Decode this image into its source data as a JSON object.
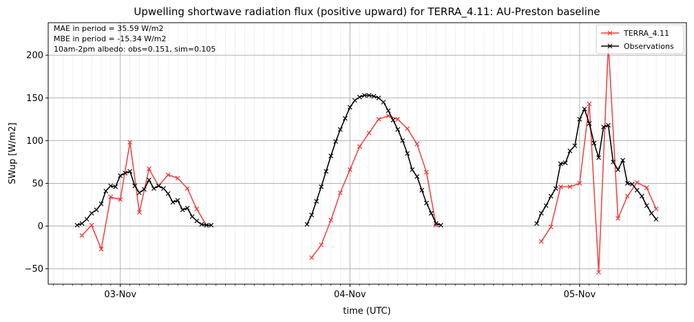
{
  "chart_data": {
    "type": "line",
    "title": "Upwelling shortwave radiation flux (positive upward) for TERRA_4.11: AU-Preston baseline",
    "xlabel": "time (UTC)",
    "ylabel": "SWup [W/m2]",
    "xlim": [
      -0.314,
      2.465
    ],
    "ylim": [
      -68,
      238
    ],
    "x_ticks": [
      {
        "value": 0,
        "label": "03-Nov"
      },
      {
        "value": 1,
        "label": "04-Nov"
      },
      {
        "value": 2,
        "label": "05-Nov"
      }
    ],
    "y_ticks": [
      -50,
      0,
      50,
      100,
      150,
      200
    ],
    "grid": true,
    "legend_position": "upper right",
    "annotations": [
      "MAE in period = 35.59 W/m2",
      "MBE in period = -15.34 W/m2",
      "10am-2pm albedo: obs=0.151, sim=0.105"
    ],
    "series": [
      {
        "name": "TERRA_4.11",
        "color": "#f03232",
        "marker": "x",
        "points": [
          [
            -0.167,
            -11
          ],
          [
            -0.125,
            1
          ],
          [
            -0.083,
            -27
          ],
          [
            -0.042,
            34
          ],
          [
            0.0,
            31
          ],
          [
            0.042,
            98
          ],
          [
            0.083,
            16
          ],
          [
            0.125,
            67
          ],
          [
            0.167,
            47
          ],
          [
            0.208,
            60
          ],
          [
            0.25,
            56
          ],
          [
            0.292,
            44
          ],
          [
            0.333,
            20
          ],
          [
            0.375,
            1
          ],
          [
            -0.167,
            null
          ],
          [
            0.833,
            -37
          ],
          [
            0.875,
            -22
          ],
          [
            0.917,
            7
          ],
          [
            0.958,
            39
          ],
          [
            1.0,
            66
          ],
          [
            1.042,
            93
          ],
          [
            1.083,
            109
          ],
          [
            1.125,
            125
          ],
          [
            1.167,
            129
          ],
          [
            1.208,
            125
          ],
          [
            1.25,
            114
          ],
          [
            1.292,
            96
          ],
          [
            1.333,
            63
          ],
          [
            1.375,
            1
          ],
          [
            1.375,
            null
          ],
          [
            1.833,
            -18
          ],
          [
            1.875,
            -1
          ],
          [
            1.917,
            46
          ],
          [
            1.958,
            46
          ],
          [
            2.0,
            50
          ],
          [
            2.042,
            143
          ],
          [
            2.083,
            -54
          ],
          [
            2.125,
            214
          ],
          [
            2.167,
            9
          ],
          [
            2.208,
            35
          ],
          [
            2.25,
            51
          ],
          [
            2.292,
            45
          ],
          [
            2.333,
            20
          ]
        ]
      },
      {
        "name": "Observations",
        "color": "#000000",
        "marker": "x",
        "points": [
          [
            -0.188,
            1
          ],
          [
            -0.167,
            3
          ],
          [
            -0.146,
            8
          ],
          [
            -0.125,
            15
          ],
          [
            -0.104,
            19
          ],
          [
            -0.083,
            26
          ],
          [
            -0.063,
            41
          ],
          [
            -0.042,
            47
          ],
          [
            -0.021,
            46
          ],
          [
            0.0,
            59
          ],
          [
            0.021,
            62
          ],
          [
            0.042,
            64
          ],
          [
            0.063,
            47
          ],
          [
            0.083,
            39
          ],
          [
            0.104,
            43
          ],
          [
            0.125,
            54
          ],
          [
            0.146,
            44
          ],
          [
            0.167,
            47
          ],
          [
            0.188,
            44
          ],
          [
            0.208,
            38
          ],
          [
            0.229,
            28
          ],
          [
            0.25,
            30
          ],
          [
            0.271,
            19
          ],
          [
            0.292,
            21
          ],
          [
            0.313,
            11
          ],
          [
            0.333,
            6
          ],
          [
            0.354,
            2
          ],
          [
            0.375,
            1
          ],
          [
            0.396,
            1
          ],
          [
            0.396,
            null
          ],
          [
            0.813,
            2
          ],
          [
            0.833,
            13
          ],
          [
            0.854,
            29
          ],
          [
            0.875,
            46
          ],
          [
            0.896,
            64
          ],
          [
            0.917,
            82
          ],
          [
            0.938,
            99
          ],
          [
            0.958,
            113
          ],
          [
            0.979,
            126
          ],
          [
            1.0,
            139
          ],
          [
            1.021,
            147
          ],
          [
            1.042,
            151
          ],
          [
            1.063,
            153
          ],
          [
            1.083,
            153
          ],
          [
            1.104,
            152
          ],
          [
            1.125,
            150
          ],
          [
            1.146,
            145
          ],
          [
            1.167,
            135
          ],
          [
            1.188,
            124
          ],
          [
            1.208,
            113
          ],
          [
            1.229,
            100
          ],
          [
            1.25,
            85
          ],
          [
            1.271,
            66
          ],
          [
            1.292,
            58
          ],
          [
            1.313,
            42
          ],
          [
            1.333,
            27
          ],
          [
            1.354,
            15
          ],
          [
            1.375,
            3
          ],
          [
            1.396,
            1
          ],
          [
            1.396,
            null
          ],
          [
            1.813,
            3
          ],
          [
            1.833,
            15
          ],
          [
            1.854,
            24
          ],
          [
            1.875,
            35
          ],
          [
            1.896,
            44
          ],
          [
            1.917,
            73
          ],
          [
            1.938,
            74
          ],
          [
            1.958,
            88
          ],
          [
            1.979,
            94
          ],
          [
            2.0,
            125
          ],
          [
            2.021,
            137
          ],
          [
            2.042,
            120
          ],
          [
            2.063,
            97
          ],
          [
            2.083,
            80
          ],
          [
            2.104,
            116
          ],
          [
            2.125,
            118
          ],
          [
            2.146,
            75
          ],
          [
            2.167,
            66
          ],
          [
            2.188,
            77
          ],
          [
            2.208,
            50
          ],
          [
            2.229,
            49
          ],
          [
            2.25,
            42
          ],
          [
            2.271,
            35
          ],
          [
            2.292,
            24
          ],
          [
            2.313,
            15
          ],
          [
            2.333,
            8
          ]
        ]
      }
    ]
  }
}
